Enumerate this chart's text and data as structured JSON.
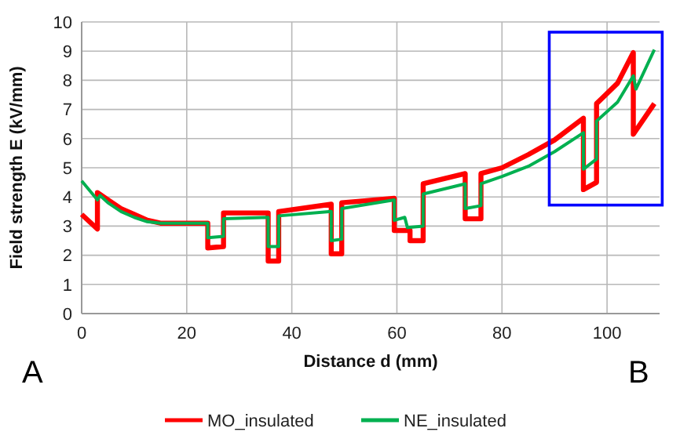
{
  "chart_data": {
    "type": "line",
    "xlabel": "Distance d (mm)",
    "ylabel": "Field strength E  (kV/mm)",
    "xlim": [
      0,
      110
    ],
    "xticks": [
      0,
      20,
      40,
      60,
      80,
      100
    ],
    "ylim": [
      0,
      10
    ],
    "yticks": [
      0,
      1,
      2,
      3,
      4,
      5,
      6,
      7,
      8,
      9,
      10
    ],
    "grid": true,
    "legend": "bottom",
    "marker": "none",
    "line_style": "solid",
    "annotations": [
      "A",
      "B"
    ],
    "series": [
      {
        "name": "MO_insulated",
        "color": "#ff0000",
        "x": [
          0,
          3,
          3,
          5,
          7.5,
          10,
          12.5,
          15,
          20,
          24,
          24,
          27,
          27,
          35.5,
          35.5,
          37.5,
          37.5,
          47.5,
          47.5,
          49.5,
          49.5,
          59.5,
          59.5,
          62.5,
          62.5,
          65,
          65,
          73,
          73,
          76,
          76,
          80,
          85,
          90,
          95.5,
          95.5,
          98,
          98,
          102,
          105,
          105,
          109
        ],
        "values": [
          3.4,
          2.9,
          4.15,
          3.9,
          3.6,
          3.4,
          3.2,
          3.1,
          3.1,
          3.1,
          2.25,
          2.3,
          3.45,
          3.45,
          1.8,
          1.8,
          3.5,
          3.75,
          2.05,
          2.05,
          3.8,
          3.95,
          2.85,
          2.85,
          2.5,
          2.5,
          4.45,
          4.8,
          3.25,
          3.25,
          4.8,
          5.0,
          5.45,
          5.95,
          6.7,
          4.25,
          4.5,
          7.2,
          7.9,
          8.95,
          6.15,
          7.2
        ]
      },
      {
        "name": "NE_insulated",
        "color": "#00b050",
        "x": [
          0,
          3,
          3.5,
          5,
          7.5,
          10,
          12.5,
          15,
          20,
          24,
          24,
          27,
          27,
          35.5,
          35.5,
          37.5,
          37.5,
          47.5,
          47.5,
          49.5,
          49.5,
          59.5,
          59.5,
          61.5,
          62,
          65,
          65,
          73,
          73,
          76,
          76,
          80,
          85,
          90,
          95.5,
          95.5,
          98,
          98,
          102,
          105,
          105.5,
          109
        ],
        "values": [
          4.55,
          3.9,
          4.05,
          3.8,
          3.5,
          3.3,
          3.15,
          3.1,
          3.1,
          3.1,
          2.6,
          2.65,
          3.25,
          3.3,
          2.3,
          2.3,
          3.35,
          3.5,
          2.5,
          2.55,
          3.6,
          3.9,
          3.2,
          3.3,
          2.95,
          3.0,
          4.1,
          4.45,
          3.6,
          3.7,
          4.45,
          4.7,
          5.05,
          5.55,
          6.2,
          4.95,
          5.3,
          6.6,
          7.25,
          8.15,
          7.7,
          9.05
        ]
      }
    ]
  }
}
